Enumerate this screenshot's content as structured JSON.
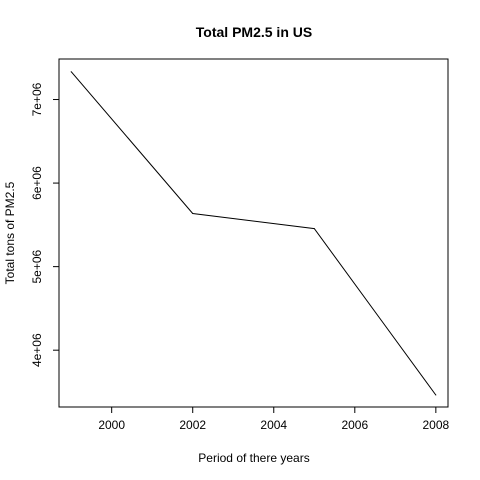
{
  "chart_data": {
    "type": "line",
    "title": "Total PM2.5 in US",
    "xlabel": "Period of there years",
    "ylabel": "Total tons of PM2.5",
    "x": [
      1999,
      2002,
      2005,
      2008
    ],
    "series": [
      {
        "values": [
          7332967,
          5635780,
          5454703,
          3464206
        ]
      }
    ],
    "xlim": [
      1998.7,
      2008.3
    ],
    "ylim": [
      3320000,
      7485000
    ],
    "x_ticks": [
      2000,
      2002,
      2004,
      2006,
      2008
    ],
    "x_tick_labels": [
      "2000",
      "2002",
      "2004",
      "2006",
      "2008"
    ],
    "y_ticks": [
      4000000,
      5000000,
      6000000,
      7000000
    ],
    "y_tick_labels": [
      "4e+06",
      "5e+06",
      "6e+06",
      "7e+06"
    ],
    "grid": false,
    "legend": "none",
    "line_color": "#000000"
  }
}
